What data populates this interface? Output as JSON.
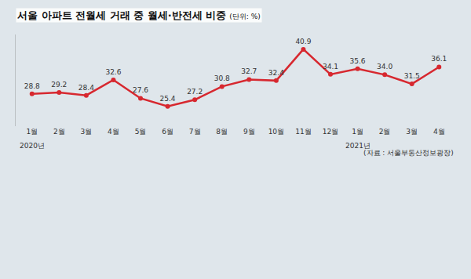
{
  "chart_data": {
    "type": "line",
    "title": "서울 아파트 전월세 거래 중 월세·반전세 비중",
    "subtitle": "(단위: %)",
    "source": "(자료 : 서울부동산정보광장)",
    "categories": [
      "1월",
      "2월",
      "3월",
      "4월",
      "5월",
      "6월",
      "7월",
      "8월",
      "9월",
      "10월",
      "11월",
      "12월",
      "1월",
      "2월",
      "3월",
      "4월"
    ],
    "annotations": [
      {
        "text": "2020년",
        "x": 0
      },
      {
        "text": "2021년",
        "x": 12
      }
    ],
    "values": [
      28.8,
      29.2,
      28.4,
      32.6,
      27.6,
      25.4,
      27.2,
      30.8,
      32.7,
      32.4,
      40.9,
      34.1,
      35.6,
      34.0,
      31.5,
      36.1
    ],
    "value_labels": [
      "28.8",
      "29.2",
      "28.4",
      "32.6",
      "27.6",
      "25.4",
      "27.2",
      "30.8",
      "32.7",
      "32.4",
      "40.9",
      "34.1",
      "35.6",
      "34.0",
      "31.5",
      "36.1"
    ],
    "color": "#d7282f",
    "marker": "circle",
    "line_style": "solid",
    "data_labels": true,
    "tick_labels": "x",
    "grid": false,
    "ylim": [
      20,
      45
    ]
  }
}
